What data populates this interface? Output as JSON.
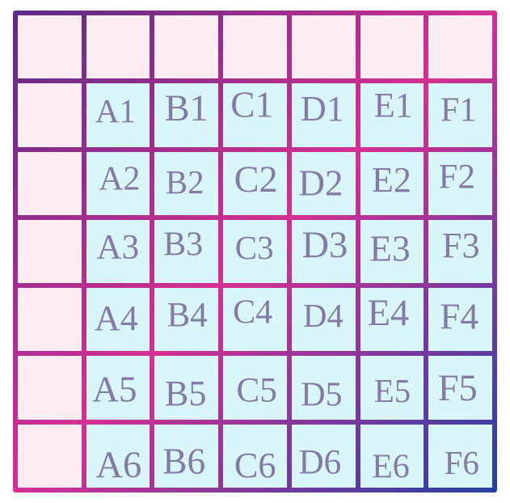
{
  "grid": {
    "rows": 7,
    "cols": 7,
    "cells": [
      [
        "A1",
        "B1",
        "C1",
        "D1",
        "E1",
        "F1"
      ],
      [
        "A2",
        "B2",
        "C2",
        "D2",
        "E2",
        "F2"
      ],
      [
        "A3",
        "B3",
        "C3",
        "D3",
        "E3",
        "F3"
      ],
      [
        "A4",
        "B4",
        "C4",
        "D4",
        "E4",
        "F4"
      ],
      [
        "A5",
        "B5",
        "C5",
        "D5",
        "E5",
        "F5"
      ],
      [
        "A6",
        "B6",
        "C6",
        "D6",
        "E6",
        "F6"
      ]
    ]
  },
  "colors": {
    "page_background": "#ffffff",
    "empty_cell_background": "#fdedf2",
    "label_cell_background": "#d8f5fa",
    "label_text": "#837aa5",
    "grid_line_gradient_start": "#5a2b86",
    "grid_line_gradient_mid": "#d52f93",
    "grid_line_gradient_end": "#2541a6"
  }
}
